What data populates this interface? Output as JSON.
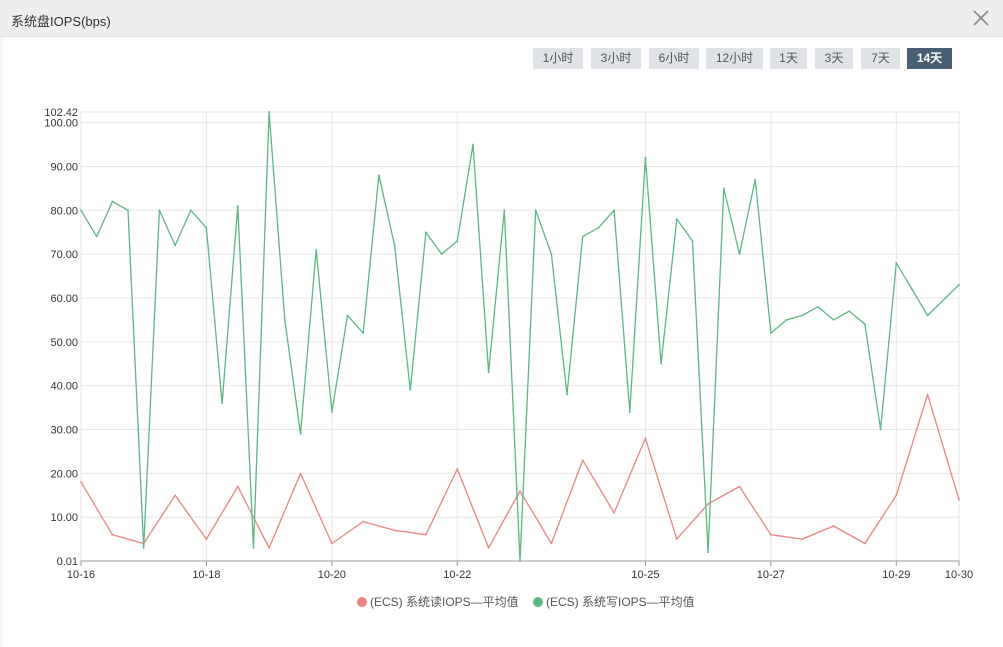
{
  "window": {
    "title": "系统盘IOPS(bps)",
    "close_icon": "close-icon"
  },
  "time_range": {
    "options": [
      "1小时",
      "3小时",
      "6小时",
      "12小时",
      "1天",
      "3天",
      "7天",
      "14天"
    ],
    "selected": "14天"
  },
  "chart_data": {
    "type": "line",
    "title": "",
    "xlabel": "",
    "ylabel": "",
    "x_ticks": [
      "10-16",
      "10-18",
      "10-20",
      "10-22",
      "10-25",
      "10-27",
      "10-29",
      "10-30"
    ],
    "y_ticks": [
      "0.01",
      "10.00",
      "20.00",
      "30.00",
      "40.00",
      "50.00",
      "60.00",
      "70.00",
      "80.00",
      "90.00",
      "100.00",
      "102.42"
    ],
    "ylim": [
      0.01,
      102.42
    ],
    "grid": true,
    "legend_position": "bottom",
    "series": [
      {
        "name": "(ECS) 系统读IOPS—平均值",
        "color": "#e8857f",
        "x": [
          "10-16",
          "10-16 12:00",
          "10-17",
          "10-17 12:00",
          "10-18",
          "10-18 12:00",
          "10-19",
          "10-19 12:00",
          "10-20",
          "10-20 12:00",
          "10-21",
          "10-21 12:00",
          "10-22",
          "10-22 12:00",
          "10-23",
          "10-23 12:00",
          "10-24",
          "10-24 12:00",
          "10-25",
          "10-25 12:00",
          "10-26",
          "10-26 12:00",
          "10-27",
          "10-27 12:00",
          "10-28",
          "10-28 12:00",
          "10-29",
          "10-29 12:00",
          "10-30"
        ],
        "values": [
          18,
          6,
          4,
          15,
          5,
          17,
          3,
          20,
          4,
          9,
          7,
          6,
          21,
          3,
          16,
          4,
          23,
          11,
          28,
          5,
          13,
          17,
          6,
          5,
          8,
          4,
          15,
          38,
          14
        ]
      },
      {
        "name": "(ECS) 系统写IOPS—平均值",
        "color": "#5db784",
        "x": [
          "10-16",
          "10-16 06:00",
          "10-16 12:00",
          "10-16 18:00",
          "10-17",
          "10-17 06:00",
          "10-17 12:00",
          "10-17 18:00",
          "10-18",
          "10-18 06:00",
          "10-18 12:00",
          "10-18 18:00",
          "10-19",
          "10-19 06:00",
          "10-19 12:00",
          "10-19 18:00",
          "10-20",
          "10-20 06:00",
          "10-20 12:00",
          "10-20 18:00",
          "10-21",
          "10-21 06:00",
          "10-21 12:00",
          "10-21 18:00",
          "10-22",
          "10-22 06:00",
          "10-22 12:00",
          "10-22 18:00",
          "10-23",
          "10-23 06:00",
          "10-23 12:00",
          "10-23 18:00",
          "10-24",
          "10-24 06:00",
          "10-24 12:00",
          "10-24 18:00",
          "10-25",
          "10-25 06:00",
          "10-25 12:00",
          "10-25 18:00",
          "10-26",
          "10-26 06:00",
          "10-26 12:00",
          "10-26 18:00",
          "10-27",
          "10-27 06:00",
          "10-27 12:00",
          "10-27 18:00",
          "10-28",
          "10-28 06:00",
          "10-28 12:00",
          "10-28 18:00",
          "10-29",
          "10-29 06:00",
          "10-29 12:00",
          "10-30"
        ],
        "values": [
          80,
          74,
          82,
          80,
          3,
          80,
          72,
          80,
          76,
          36,
          81,
          3,
          102.42,
          55,
          29,
          71,
          34,
          56,
          52,
          88,
          72,
          39,
          75,
          70,
          73,
          95,
          43,
          80,
          0.01,
          80,
          70,
          38,
          74,
          76,
          80,
          34,
          92,
          45,
          78,
          73,
          2,
          85,
          70,
          87,
          52,
          55,
          56,
          58,
          55,
          57,
          54,
          30,
          68,
          62,
          56,
          63
        ]
      }
    ]
  }
}
